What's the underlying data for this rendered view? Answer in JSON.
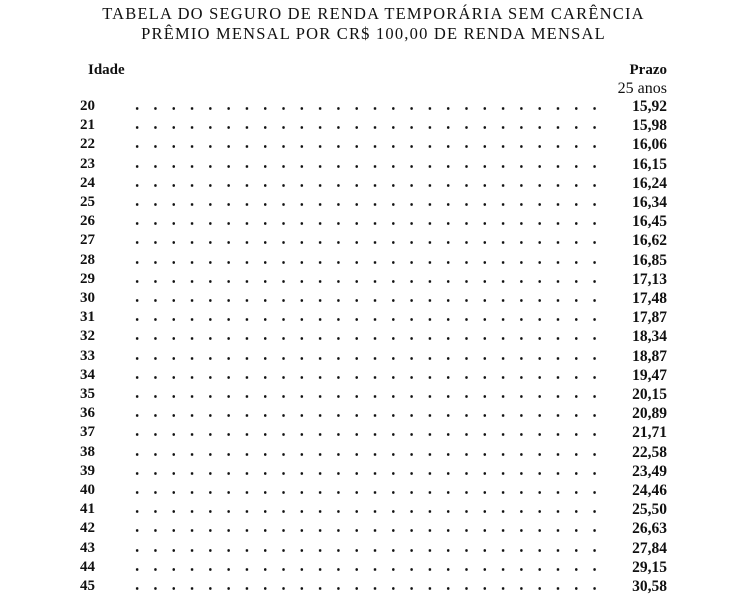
{
  "title_line1": "TABELA DO SEGURO DE RENDA TEMPORÁRIA SEM CARÊNCIA",
  "title_line2": "PRÊMIO MENSAL POR CR$ 100,00 DE RENDA MENSAL",
  "table": {
    "header_age": "Idade",
    "header_term": "Prazo",
    "header_term_value": "25  anos",
    "rows": [
      {
        "age": "20",
        "premium": "15,92"
      },
      {
        "age": "21",
        "premium": "15,98"
      },
      {
        "age": "22",
        "premium": "16,06"
      },
      {
        "age": "23",
        "premium": "16,15"
      },
      {
        "age": "24",
        "premium": "16,24"
      },
      {
        "age": "25",
        "premium": "16,34"
      },
      {
        "age": "26",
        "premium": "16,45"
      },
      {
        "age": "27",
        "premium": "16,62"
      },
      {
        "age": "28",
        "premium": "16,85"
      },
      {
        "age": "29",
        "premium": "17,13"
      },
      {
        "age": "30",
        "premium": "17,48"
      },
      {
        "age": "31",
        "premium": "17,87"
      },
      {
        "age": "32",
        "premium": "18,34"
      },
      {
        "age": "33",
        "premium": "18,87"
      },
      {
        "age": "34",
        "premium": "19,47"
      },
      {
        "age": "35",
        "premium": "20,15"
      },
      {
        "age": "36",
        "premium": "20,89"
      },
      {
        "age": "37",
        "premium": "21,71"
      },
      {
        "age": "38",
        "premium": "22,58"
      },
      {
        "age": "39",
        "premium": "23,49"
      },
      {
        "age": "40",
        "premium": "24,46"
      },
      {
        "age": "41",
        "premium": "25,50"
      },
      {
        "age": "42",
        "premium": "26,63"
      },
      {
        "age": "43",
        "premium": "27,84"
      },
      {
        "age": "44",
        "premium": "29,15"
      },
      {
        "age": "45",
        "premium": "30,58"
      }
    ]
  }
}
